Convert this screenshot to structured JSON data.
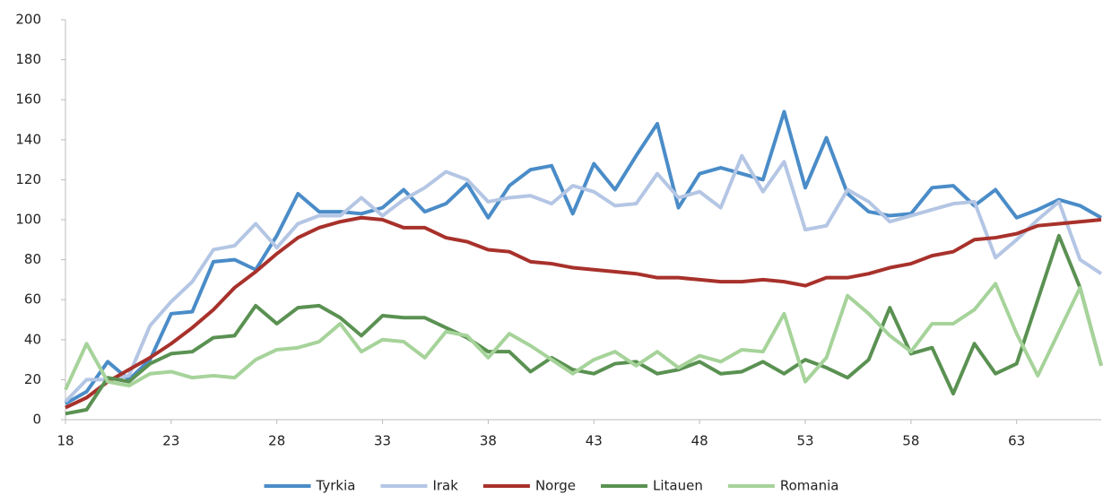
{
  "chart_data": {
    "type": "line",
    "x": [
      18,
      19,
      20,
      21,
      22,
      23,
      24,
      25,
      26,
      27,
      28,
      29,
      30,
      31,
      32,
      33,
      34,
      35,
      36,
      37,
      38,
      39,
      40,
      41,
      42,
      43,
      44,
      45,
      46,
      47,
      48,
      49,
      50,
      51,
      52,
      53,
      54,
      55,
      56,
      57,
      58,
      59,
      60,
      61,
      62,
      63,
      64,
      65,
      66,
      67
    ],
    "series": [
      {
        "name": "Tyrkia",
        "color": "#4a8cc8",
        "values": [
          8,
          14,
          29,
          20,
          30,
          53,
          54,
          79,
          80,
          75,
          92,
          113,
          104,
          104,
          103,
          106,
          115,
          104,
          108,
          118,
          101,
          117,
          125,
          127,
          103,
          128,
          115,
          132,
          148,
          106,
          123,
          126,
          123,
          120,
          154,
          116,
          141,
          113,
          104,
          102,
          103,
          116,
          117,
          107,
          115,
          101,
          105,
          110,
          107,
          101
        ]
      },
      {
        "name": "Irak",
        "color": "#b4c6e4",
        "values": [
          9,
          20,
          20,
          22,
          47,
          59,
          69,
          85,
          87,
          98,
          86,
          98,
          102,
          102,
          111,
          102,
          110,
          116,
          124,
          120,
          109,
          111,
          112,
          108,
          117,
          114,
          107,
          108,
          123,
          111,
          114,
          106,
          132,
          114,
          129,
          95,
          97,
          115,
          109,
          99,
          102,
          105,
          108,
          109,
          81,
          90,
          100,
          109,
          80,
          73
        ]
      },
      {
        "name": "Norge",
        "color": "#a8312b",
        "values": [
          6,
          11,
          19,
          25,
          31,
          38,
          46,
          55,
          66,
          74,
          83,
          91,
          96,
          99,
          101,
          100,
          96,
          96,
          91,
          89,
          85,
          84,
          79,
          78,
          76,
          75,
          74,
          73,
          71,
          71,
          70,
          69,
          69,
          70,
          69,
          67,
          71,
          71,
          73,
          76,
          78,
          82,
          84,
          90,
          91,
          93,
          97,
          98,
          99,
          100
        ]
      },
      {
        "name": "Litauen",
        "color": "#5a9152",
        "values": [
          3,
          5,
          21,
          19,
          28,
          33,
          34,
          41,
          42,
          57,
          48,
          56,
          57,
          51,
          42,
          52,
          51,
          51,
          46,
          41,
          34,
          34,
          24,
          31,
          25,
          23,
          28,
          29,
          23,
          25,
          29,
          23,
          24,
          29,
          23,
          30,
          26,
          21,
          30,
          56,
          33,
          36,
          13,
          38,
          23,
          28,
          60,
          92,
          66,
          27
        ]
      },
      {
        "name": "Romania",
        "color": "#a6d39a",
        "values": [
          15,
          38,
          19,
          17,
          23,
          24,
          21,
          22,
          21,
          30,
          35,
          36,
          39,
          48,
          34,
          40,
          39,
          31,
          44,
          42,
          31,
          43,
          37,
          30,
          23,
          30,
          34,
          27,
          34,
          26,
          32,
          29,
          35,
          34,
          53,
          19,
          31,
          62,
          53,
          42,
          34,
          48,
          48,
          55,
          68,
          43,
          22,
          44,
          66,
          27
        ]
      }
    ],
    "xlim": [
      18,
      67
    ],
    "xticks": [
      18,
      23,
      28,
      33,
      38,
      43,
      48,
      53,
      58,
      63
    ],
    "ylim": [
      0,
      200
    ],
    "yticks": [
      0,
      20,
      40,
      60,
      80,
      100,
      120,
      140,
      160,
      180,
      200
    ],
    "grid": false,
    "legend": "bottom"
  }
}
